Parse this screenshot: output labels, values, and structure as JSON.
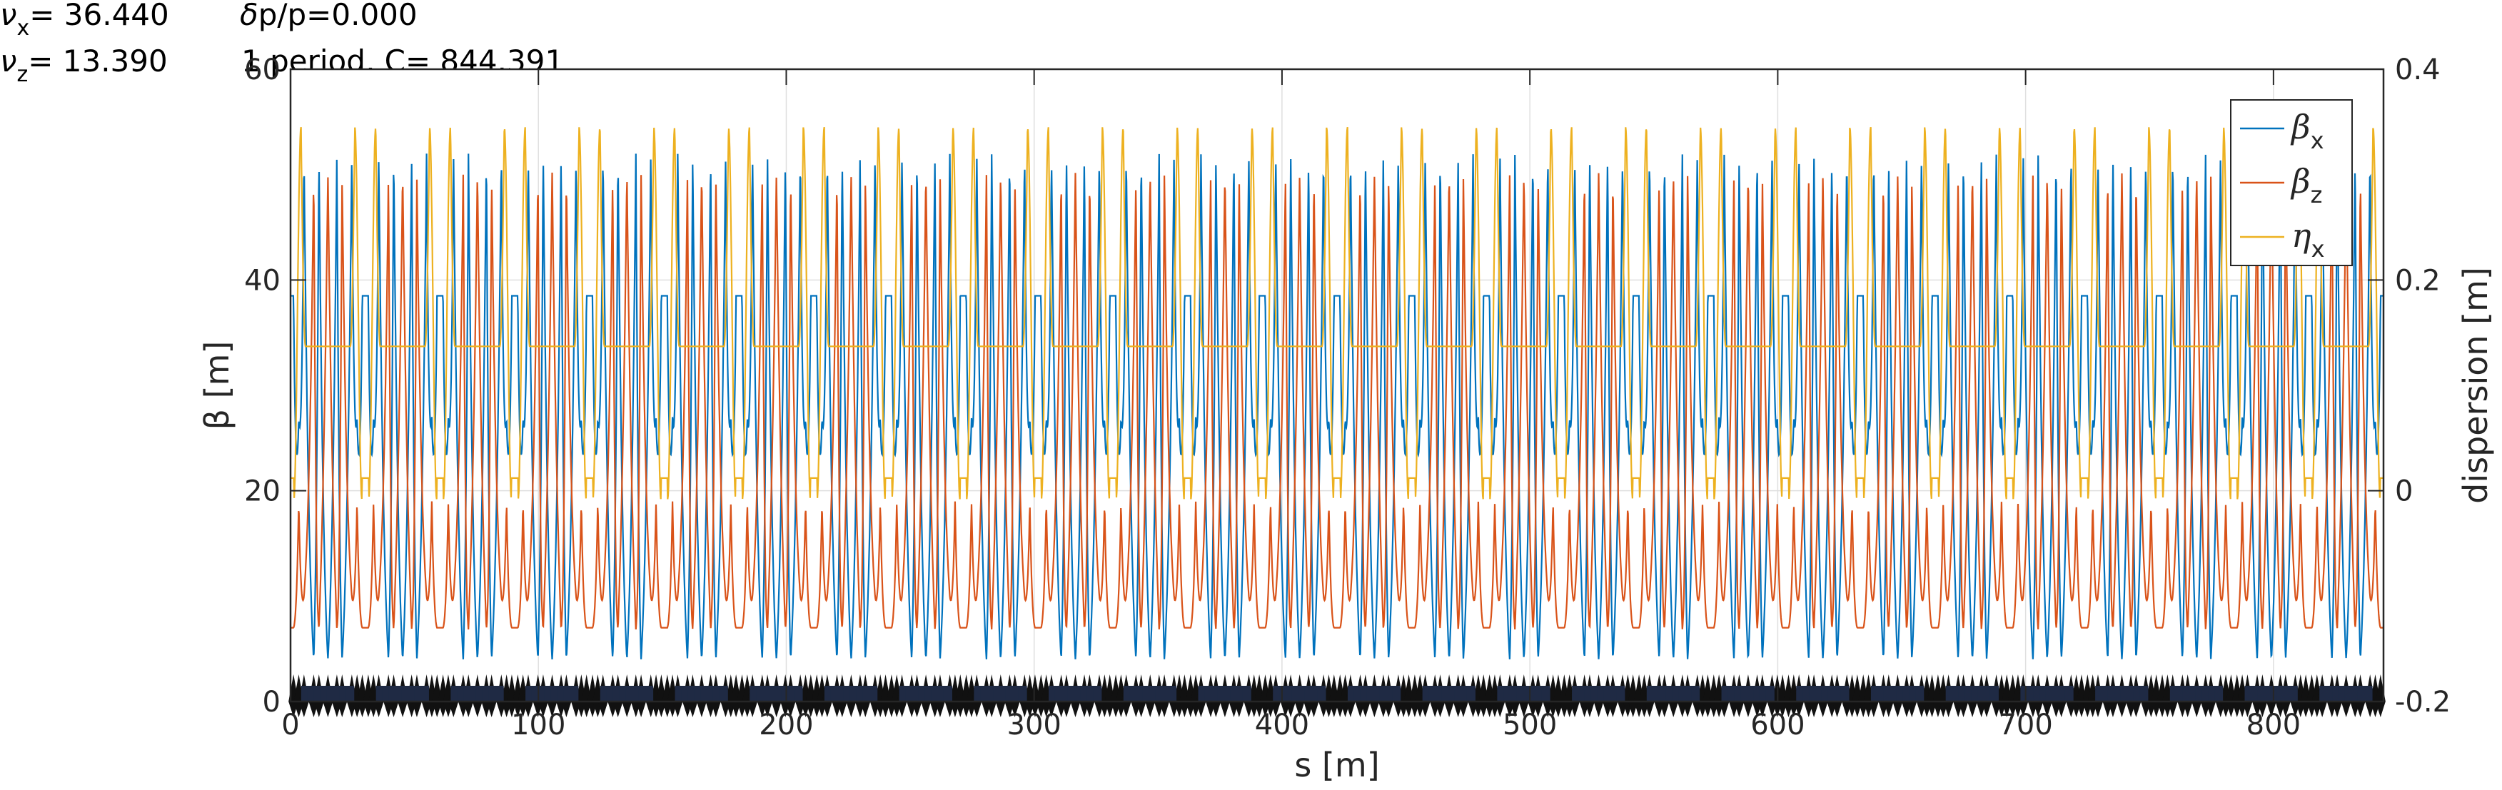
{
  "header": {
    "nux_symbol": "ν",
    "nux_sub": "x",
    "nux_value": "=  36.440",
    "dpp_symbol": "δ",
    "dpp_value": "p/p=0.000",
    "nuz_symbol": "ν",
    "nuz_sub": "z",
    "nuz_value": "=  13.390",
    "period_text": "1 period, C=   844.391"
  },
  "chart_data": {
    "type": "line",
    "title": "",
    "xlabel": "s [m]",
    "ylabel_left": "β [m]",
    "ylabel_right": "dispersion [m]",
    "xlim": [
      0,
      844.391
    ],
    "ylim_left": [
      0,
      60
    ],
    "ylim_right": [
      -0.2,
      0.4
    ],
    "x_ticks": [
      0,
      100,
      200,
      300,
      400,
      500,
      600,
      700,
      800
    ],
    "y_left_ticks": [
      0,
      20,
      40,
      60
    ],
    "y_right_ticks": [
      "-0.2",
      "0",
      "0.2",
      "0.4"
    ],
    "grid": true,
    "legend_position": "top-right",
    "lattice": {
      "cells": 28,
      "cell_length": 30.157,
      "quad_fractions": [
        0.04,
        0.11,
        0.18,
        0.31,
        0.38,
        0.5,
        0.62,
        0.69,
        0.82,
        0.89,
        0.96
      ],
      "quad_beta_x": [
        38.5,
        27,
        52,
        4,
        52,
        4,
        52,
        4,
        52,
        27,
        38.5
      ],
      "quad_beta_z": [
        7,
        19,
        10,
        50,
        3,
        50,
        3,
        50,
        10,
        19,
        7
      ],
      "dispersion_peak": 0.345,
      "dispersion_flat": 0.137,
      "dispersion_straight": 0.012,
      "dispersion_dip": -0.008
    },
    "series": [
      {
        "name": "β",
        "sub": "x",
        "color": "#0072BD",
        "axis": "left"
      },
      {
        "name": "β",
        "sub": "z",
        "color": "#D95319",
        "axis": "left"
      },
      {
        "name": "η",
        "sub": "x",
        "color": "#EDB120",
        "axis": "right"
      }
    ]
  }
}
